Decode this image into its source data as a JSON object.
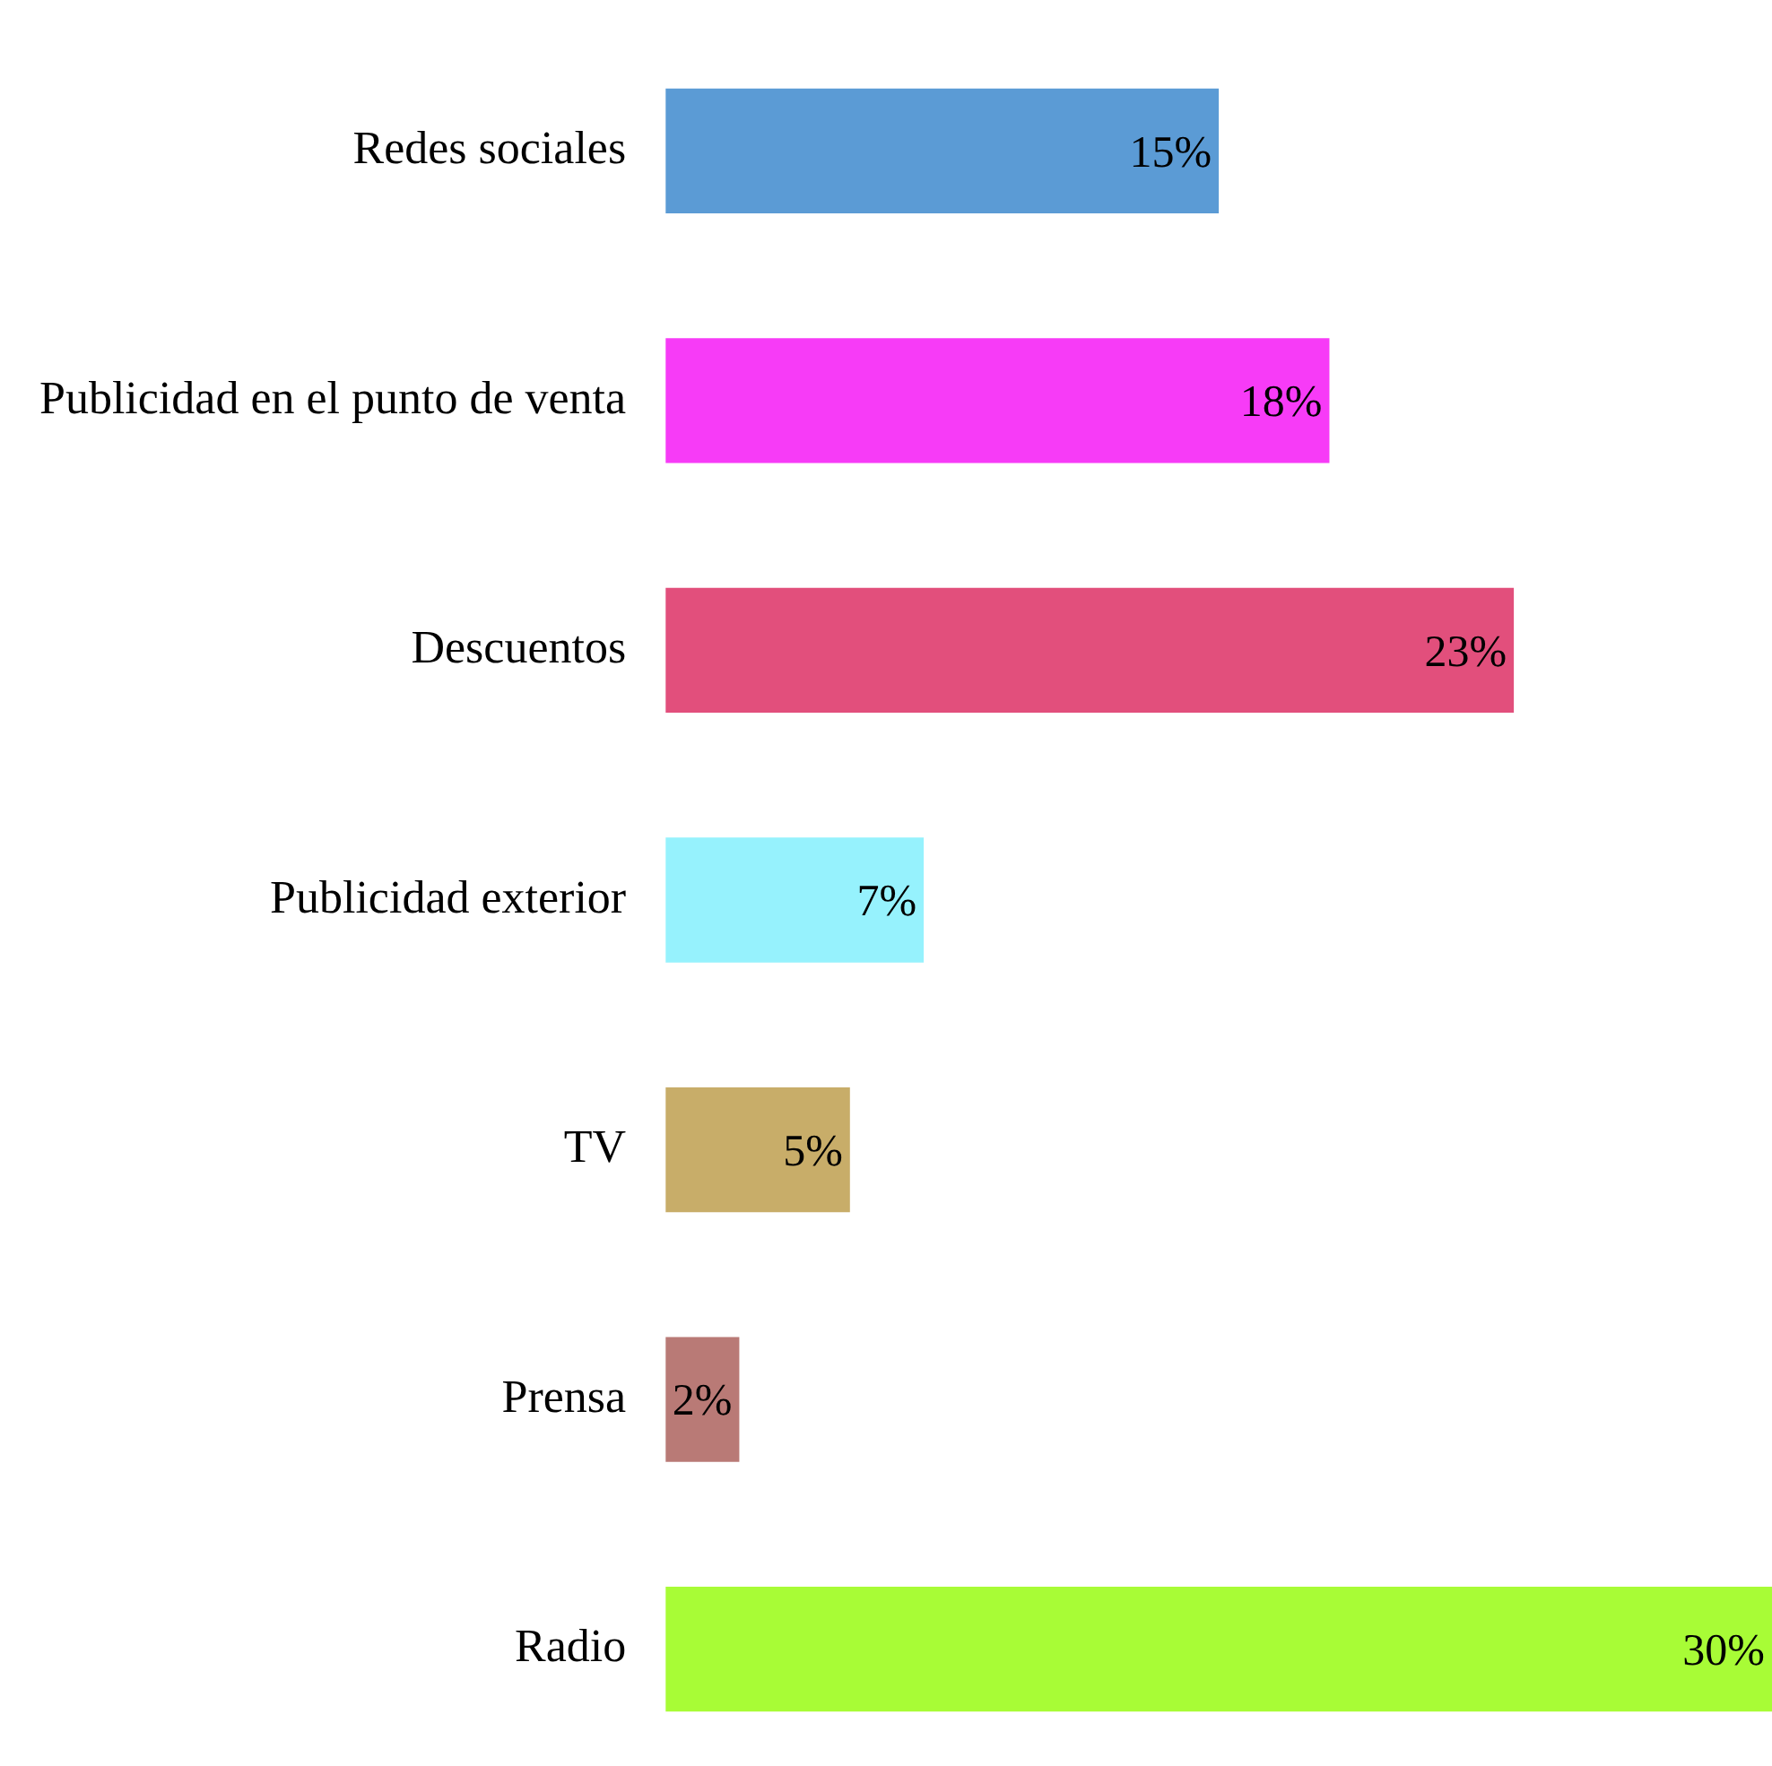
{
  "chart_data": {
    "type": "bar",
    "orientation": "horizontal",
    "categories": [
      "Redes sociales",
      "Publicidad en el punto de venta",
      "Descuentos",
      "Publicidad exterior",
      "TV",
      "Prensa",
      "Radio"
    ],
    "values": [
      15,
      18,
      23,
      7,
      5,
      2,
      30
    ],
    "colors": [
      "#5b9bd5",
      "#f73bf7",
      "#e24f7c",
      "#96f2fd",
      "#c8ad69",
      "#b97a76",
      "#a8fc36"
    ],
    "value_labels": [
      "15%",
      "18%",
      "23%",
      "7%",
      "5%",
      "2%",
      "30%"
    ],
    "tick_labels": "y"
  }
}
